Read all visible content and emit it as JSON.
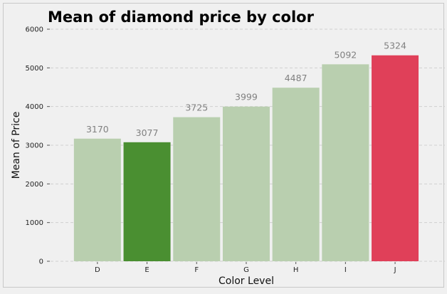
{
  "chart_data": {
    "type": "bar",
    "title": "Mean of diamond price by color",
    "xlabel": "Color Level",
    "ylabel": "Mean of Price",
    "categories": [
      "D",
      "E",
      "F",
      "G",
      "H",
      "I",
      "J"
    ],
    "values": [
      3170,
      3077,
      3725,
      3999,
      4487,
      5092,
      5324
    ],
    "data_labels": [
      "3170",
      "3077",
      "3725",
      "3999",
      "4487",
      "5092",
      "5324"
    ],
    "ylim": [
      0,
      6000
    ],
    "yticks": [
      0,
      1000,
      2000,
      3000,
      4000,
      5000,
      6000
    ],
    "grid": true,
    "colors": {
      "default": "#b9cfaf",
      "min": "#4a8f31",
      "max": "#e04059",
      "background": "#f0f0f0",
      "data_label": "#808080"
    }
  }
}
